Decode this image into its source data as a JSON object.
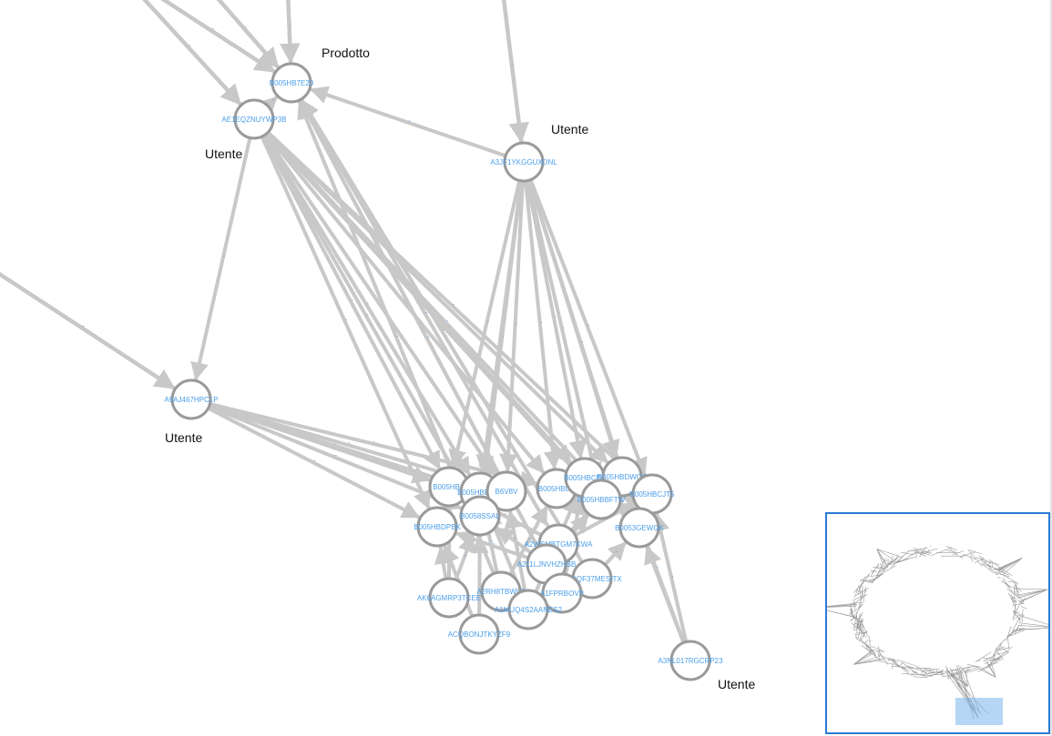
{
  "annotations": {
    "prodotto": "Prodotto",
    "utente_1": "Utente",
    "utente_2": "Utente",
    "utente_3": "Utente",
    "utente_4": "Utente"
  },
  "nodes": [
    {
      "id": "B005HB7E20",
      "label": "B005HB7E20"
    },
    {
      "id": "AE1EQZNUYWP3B",
      "label": "AE1EQZNUYWP3B"
    },
    {
      "id": "A3JF1YKGGUXDNL",
      "label": "A3JF1YKGGUXDNL"
    },
    {
      "id": "A9AJ467HPC1P",
      "label": "A9AJ467HPC1P"
    },
    {
      "id": "A3NL017RGCRP23",
      "label": "A3NL017RGCRP23"
    },
    {
      "id": "B005HBC",
      "label": "B005HBC"
    },
    {
      "id": "B005HBE6FE",
      "label": "B005HBE6FE"
    },
    {
      "id": "B6V8V",
      "label": "B6V8V"
    },
    {
      "id": "B005HBDF",
      "label": "B005HBDF"
    },
    {
      "id": "B005HBCBF",
      "label": "B005HBCBF"
    },
    {
      "id": "B005HBDWQS",
      "label": "B005HBDWQS"
    },
    {
      "id": "B005HBCJT5",
      "label": "B005HBCJT5"
    },
    {
      "id": "B005HBBFTW",
      "label": "B005HBBFTW"
    },
    {
      "id": "B0058SSAL",
      "label": "B0058SSAL"
    },
    {
      "id": "B005HBDPBK",
      "label": "B005HBDPBK"
    },
    {
      "id": "B0053GEWGK",
      "label": "B0053GEWGK"
    },
    {
      "id": "A2WSMBTGM7KWA",
      "label": "A2WSMBTGM7KWA"
    },
    {
      "id": "A211LJNVHZHSB",
      "label": "A211LJNVHZHSB"
    },
    {
      "id": "A1DQF37MESITX",
      "label": "A1DQF37MESITX"
    },
    {
      "id": "AK6AGMRP3TCEE",
      "label": "AK6AGMRP3TCEE"
    },
    {
      "id": "A2RH8TBWLS",
      "label": "A2RH8TBWLS"
    },
    {
      "id": "A1FPRBOVP",
      "label": "A1FPRBOVP"
    },
    {
      "id": "A1MUQ4S2AANES2",
      "label": "A1MUQ4S2AANES2"
    },
    {
      "id": "ACQBONJTKYZF9",
      "label": "ACQBONJTKYZF9"
    }
  ],
  "edges": [
    [
      "AE1EQZNUYWP3B",
      "B005HB7E20"
    ],
    [
      "A3JF1YKGGUXDNL",
      "B005HB7E20"
    ],
    [
      "AE1EQZNUYWP3B",
      "B005HBC"
    ],
    [
      "AE1EQZNUYWP3B",
      "B005HBE6FE"
    ],
    [
      "AE1EQZNUYWP3B",
      "B6V8V"
    ],
    [
      "AE1EQZNUYWP3B",
      "B005HBDF"
    ],
    [
      "AE1EQZNUYWP3B",
      "B005HBCBF"
    ],
    [
      "AE1EQZNUYWP3B",
      "B005HBDWQS"
    ],
    [
      "AE1EQZNUYWP3B",
      "B005HBCJT5"
    ],
    [
      "AE1EQZNUYWP3B",
      "B005HBBFTW"
    ],
    [
      "AE1EQZNUYWP3B",
      "B0058SSAL"
    ],
    [
      "AE1EQZNUYWP3B",
      "B0053GEWGK"
    ],
    [
      "AE1EQZNUYWP3B",
      "B005HBDPBK"
    ],
    [
      "AE1EQZNUYWP3B",
      "A9AJ467HPC1P"
    ],
    [
      "A3JF1YKGGUXDNL",
      "B005HBC"
    ],
    [
      "A3JF1YKGGUXDNL",
      "B005HBE6FE"
    ],
    [
      "A3JF1YKGGUXDNL",
      "B6V8V"
    ],
    [
      "A3JF1YKGGUXDNL",
      "B005HBDF"
    ],
    [
      "A3JF1YKGGUXDNL",
      "B005HBCBF"
    ],
    [
      "A3JF1YKGGUXDNL",
      "B005HBDWQS"
    ],
    [
      "A3JF1YKGGUXDNL",
      "B005HBCJT5"
    ],
    [
      "A3JF1YKGGUXDNL",
      "B005HBBFTW"
    ],
    [
      "A3JF1YKGGUXDNL",
      "B0058SSAL"
    ],
    [
      "A3JF1YKGGUXDNL",
      "B0053GEWGK"
    ],
    [
      "A9AJ467HPC1P",
      "B005HBC"
    ],
    [
      "A9AJ467HPC1P",
      "B005HBE6FE"
    ],
    [
      "A9AJ467HPC1P",
      "B6V8V"
    ],
    [
      "A9AJ467HPC1P",
      "B0058SSAL"
    ],
    [
      "A9AJ467HPC1P",
      "B005HBDPBK"
    ],
    [
      "A9AJ467HPC1P",
      "B005HBDF"
    ],
    [
      "A3NL017RGCRP23",
      "B005HBCJT5"
    ],
    [
      "A3NL017RGCRP23",
      "B0053GEWGK"
    ],
    [
      "A3NL017RGCRP23",
      "B005HBDWQS"
    ],
    [
      "A2WSMBTGM7KWA",
      "B005HB7E20"
    ],
    [
      "A211LJNVHZHSB",
      "B005HB7E20"
    ],
    [
      "A1DQF37MESITX",
      "B005HB7E20"
    ],
    [
      "A1FPRBOVP",
      "B005HB7E20"
    ],
    [
      "A2RH8TBWLS",
      "B005HB7E20"
    ],
    [
      "AK6AGMRP3TCEE",
      "B005HBC"
    ],
    [
      "AK6AGMRP3TCEE",
      "B0058SSAL"
    ],
    [
      "AK6AGMRP3TCEE",
      "B005HBDPBK"
    ],
    [
      "A2RH8TBWLS",
      "B005HBE6FE"
    ],
    [
      "A2RH8TBWLS",
      "B005HBDF"
    ],
    [
      "A1MUQ4S2AANES2",
      "B6V8V"
    ],
    [
      "A1MUQ4S2AANES2",
      "B005HBCBF"
    ],
    [
      "A2WSMBTGM7KWA",
      "B005HBDWQS"
    ],
    [
      "A2WSMBTGM7KWA",
      "B005HBCJT5"
    ],
    [
      "A211LJNVHZHSB",
      "B005HBBFTW"
    ],
    [
      "A211LJNVHZHSB",
      "B0058SSAL"
    ],
    [
      "A1DQF37MESITX",
      "B0053GEWGK"
    ],
    [
      "A1FPRBOVP",
      "B005HBCBF"
    ],
    [
      "ACQBONJTKYZF9",
      "B005HBDPBK"
    ],
    [
      "ACQBONJTKYZF9",
      "B0058SSAL"
    ],
    [
      "A1MUQ4S2AANES2",
      "B005HBE6FE"
    ],
    [
      "A2WSMBTGM7KWA",
      "B005HBC"
    ],
    [
      "A211LJNVHZHSB",
      "B005HBDPBK"
    ]
  ],
  "offscreen_edges": [
    [
      "offscreen_top_1",
      "B005HB7E20"
    ],
    [
      "offscreen_top_2",
      "B005HB7E20"
    ],
    [
      "offscreen_top_3",
      "B005HB7E20"
    ],
    [
      "offscreen_top_4",
      "AE1EQZNUYWP3B"
    ],
    [
      "offscreen_top_5",
      "A3JF1YKGGUXDNL"
    ],
    [
      "offscreen_left_1",
      "A9AJ467HPC1P"
    ]
  ],
  "minimap": {
    "label": "minimap"
  }
}
